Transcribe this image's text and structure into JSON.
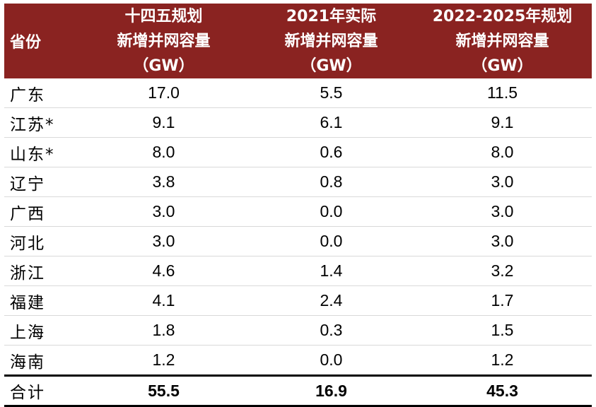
{
  "header": {
    "col0": "省份",
    "col1": [
      "十四五规划",
      "新增并网容量",
      "（GW）"
    ],
    "col2": [
      "2021年实际",
      "新增并网容量",
      "（GW）"
    ],
    "col3": [
      "2022-2025年规划",
      "新增并网容量",
      "（GW）"
    ]
  },
  "rows": [
    {
      "province": "广东",
      "plan": "17.0",
      "actual2021": "5.5",
      "plan2022_2025": "11.5"
    },
    {
      "province": "江苏*",
      "plan": "9.1",
      "actual2021": "6.1",
      "plan2022_2025": "9.1"
    },
    {
      "province": "山东*",
      "plan": "8.0",
      "actual2021": "0.6",
      "plan2022_2025": "8.0"
    },
    {
      "province": "辽宁",
      "plan": "3.8",
      "actual2021": "0.8",
      "plan2022_2025": "3.0"
    },
    {
      "province": "广西",
      "plan": "3.0",
      "actual2021": "0.0",
      "plan2022_2025": "3.0"
    },
    {
      "province": "河北",
      "plan": "3.0",
      "actual2021": "0.0",
      "plan2022_2025": "3.0"
    },
    {
      "province": "浙江",
      "plan": "4.6",
      "actual2021": "1.4",
      "plan2022_2025": "3.2"
    },
    {
      "province": "福建",
      "plan": "4.1",
      "actual2021": "2.4",
      "plan2022_2025": "1.7"
    },
    {
      "province": "上海",
      "plan": "1.8",
      "actual2021": "0.3",
      "plan2022_2025": "1.5"
    },
    {
      "province": "海南",
      "plan": "1.2",
      "actual2021": "0.0",
      "plan2022_2025": "1.2"
    }
  ],
  "total": {
    "label": "合计",
    "plan": "55.5",
    "actual2021": "16.9",
    "plan2022_2025": "45.3"
  },
  "colors": {
    "header_bg": "#8a2321",
    "header_text": "#ffffff"
  }
}
